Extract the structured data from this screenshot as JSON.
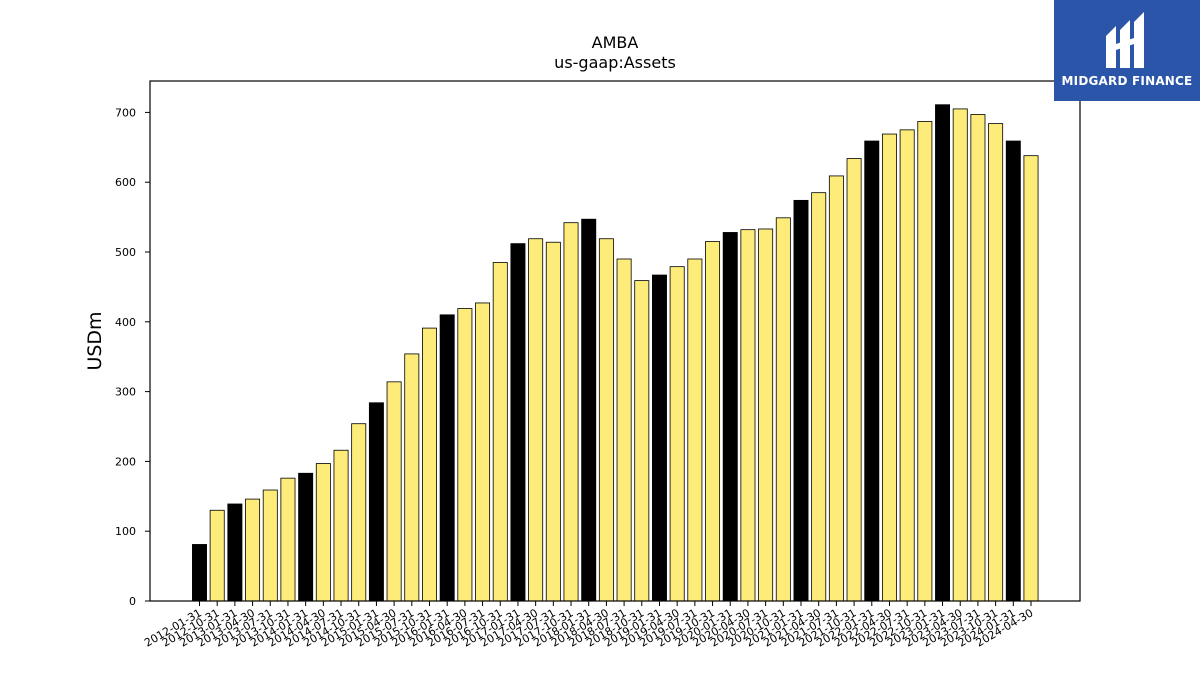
{
  "logo": {
    "text": "MIDGARD FINANCE"
  },
  "chart_data": {
    "type": "bar",
    "title": "AMBA",
    "subtitle": "us-gaap:Assets",
    "xlabel": "",
    "ylabel": "USDm",
    "ylim": [
      0,
      745
    ],
    "yticks": [
      0,
      100,
      200,
      300,
      400,
      500,
      600,
      700
    ],
    "grid": false,
    "colors": {
      "fiscal_year_end": "#000000",
      "quarter": "#fdec7a",
      "edge": "#000000"
    },
    "categories": [
      "2012-01-31",
      "2012-10-31",
      "2013-01-31",
      "2013-04-30",
      "2013-07-31",
      "2013-10-31",
      "2014-01-31",
      "2014-04-30",
      "2014-07-31",
      "2014-10-31",
      "2015-01-31",
      "2015-04-30",
      "2015-07-31",
      "2015-10-31",
      "2016-01-31",
      "2016-04-30",
      "2016-07-31",
      "2016-10-31",
      "2017-01-31",
      "2017-04-30",
      "2017-07-31",
      "2017-10-31",
      "2018-01-31",
      "2018-04-30",
      "2018-07-31",
      "2018-10-31",
      "2019-01-31",
      "2019-04-30",
      "2019-07-31",
      "2019-10-31",
      "2020-01-31",
      "2020-04-30",
      "2020-07-31",
      "2020-10-31",
      "2021-01-31",
      "2021-04-30",
      "2021-07-31",
      "2021-10-31",
      "2022-01-31",
      "2022-04-30",
      "2022-07-31",
      "2022-10-31",
      "2023-01-31",
      "2023-04-30",
      "2023-07-31",
      "2023-10-31",
      "2024-01-31",
      "2024-04-30"
    ],
    "values": [
      81,
      130,
      139,
      146,
      159,
      176,
      183,
      197,
      216,
      254,
      284,
      314,
      354,
      391,
      410,
      419,
      427,
      485,
      512,
      519,
      514,
      542,
      547,
      519,
      490,
      459,
      467,
      479,
      490,
      515,
      528,
      532,
      533,
      549,
      574,
      585,
      609,
      634,
      659,
      669,
      675,
      687,
      711,
      705,
      697,
      684,
      659,
      638
    ],
    "fiscal_year_end": [
      true,
      false,
      true,
      false,
      false,
      false,
      true,
      false,
      false,
      false,
      true,
      false,
      false,
      false,
      true,
      false,
      false,
      false,
      true,
      false,
      false,
      false,
      true,
      false,
      false,
      false,
      true,
      false,
      false,
      false,
      true,
      false,
      false,
      false,
      true,
      false,
      false,
      false,
      true,
      false,
      false,
      false,
      true,
      false,
      false,
      false,
      true,
      false
    ]
  }
}
